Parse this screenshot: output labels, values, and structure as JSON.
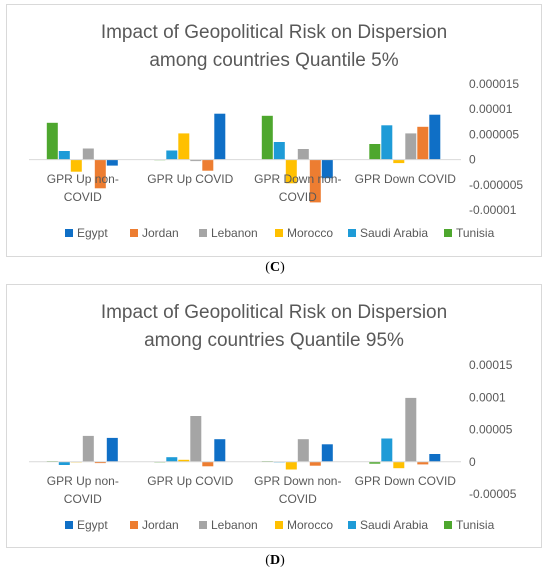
{
  "chart_data": [
    {
      "type": "bar",
      "title": [
        "Impact of Geopolitical Risk on Dispersion",
        "among countries Quantile 5%"
      ],
      "categories": [
        [
          "GPR Up non-",
          "COVID"
        ],
        [
          "GPR Up COVID"
        ],
        [
          "GPR Down non-",
          "COVID"
        ],
        [
          "GPR Down COVID"
        ]
      ],
      "series": [
        {
          "name": "Tunisia",
          "values": [
            7.3e-06,
            0.0,
            8.7e-06,
            3.1e-06
          ]
        },
        {
          "name": "Saudi Arabia",
          "values": [
            1.7e-06,
            1.8e-06,
            3.5e-06,
            6.8e-06
          ]
        },
        {
          "name": "Morocco",
          "values": [
            -2.4e-06,
            5.2e-06,
            -4.7e-06,
            -7e-07
          ]
        },
        {
          "name": "Lebanon",
          "values": [
            2.2e-06,
            -3e-07,
            2.1e-06,
            5.2e-06
          ]
        },
        {
          "name": "Jordan",
          "values": [
            -5.7e-06,
            -2.2e-06,
            -8.5e-06,
            6.5e-06
          ]
        },
        {
          "name": "Egypt",
          "values": [
            -1.2e-06,
            9.1e-06,
            -3.7e-06,
            8.9e-06
          ]
        }
      ],
      "ylim": [
        -1e-05,
        1.5e-05
      ],
      "yticks": [
        -1e-05,
        -5e-06,
        0,
        5e-06,
        1e-05,
        1.5e-05
      ],
      "ytick_labels": [
        "-0.00001",
        "-0.000005",
        "0",
        "0.000005",
        "0.00001",
        "0.000015"
      ],
      "xlabel": "",
      "ylabel": "",
      "grid": false,
      "legend_position": "bottom"
    },
    {
      "type": "bar",
      "title": [
        "Impact of Geopolitical Risk on Dispersion",
        "among countries Quantile 95%"
      ],
      "categories": [
        [
          "GPR Up non-",
          "COVID"
        ],
        [
          "GPR Up COVID"
        ],
        [
          "GPR Down non-",
          "COVID"
        ],
        [
          "GPR Down COVID"
        ]
      ],
      "series": [
        {
          "name": "Tunisia",
          "values": [
            1e-06,
            -1e-06,
            1e-06,
            -3e-06
          ]
        },
        {
          "name": "Saudi Arabia",
          "values": [
            -5e-06,
            7e-06,
            0.0,
            3.6e-05
          ]
        },
        {
          "name": "Morocco",
          "values": [
            0.0,
            3e-06,
            -1.2e-05,
            -1e-05
          ]
        },
        {
          "name": "Lebanon",
          "values": [
            4e-05,
            7.1e-05,
            3.5e-05,
            9.9e-05
          ]
        },
        {
          "name": "Jordan",
          "values": [
            -2e-06,
            -7e-06,
            -6e-06,
            -4e-06
          ]
        },
        {
          "name": "Egypt",
          "values": [
            3.7e-05,
            3.5e-05,
            2.7e-05,
            1.2e-05
          ]
        }
      ],
      "ylim": [
        -5e-05,
        0.00015
      ],
      "yticks": [
        -5e-05,
        0,
        5e-05,
        0.0001,
        0.00015
      ],
      "ytick_labels": [
        "-0.00005",
        "0",
        "0.00005",
        "0.0001",
        "0.00015"
      ],
      "xlabel": "",
      "ylabel": "",
      "grid": false,
      "legend_position": "bottom"
    }
  ],
  "legend_order": [
    "Egypt",
    "Jordan",
    "Lebanon",
    "Morocco",
    "Saudi Arabia",
    "Tunisia"
  ],
  "colors": {
    "Tunisia": "#4ea72e",
    "Saudi Arabia": "#1e9bd7",
    "Morocco": "#ffc000",
    "Lebanon": "#a5a5a5",
    "Jordan": "#ed7d31",
    "Egypt": "#0f6fc6"
  },
  "captions": [
    {
      "open": "(",
      "letter": "C",
      "close": ")"
    },
    {
      "open": "(",
      "letter": "D",
      "close": ")"
    }
  ]
}
